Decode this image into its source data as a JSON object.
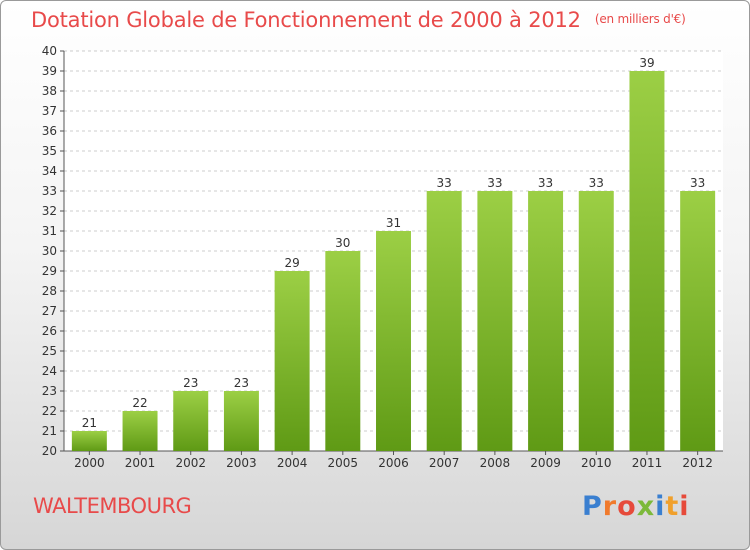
{
  "header": {
    "title": "Dotation Globale de Fonctionnement de 2000 à 2012",
    "unit": "(en milliers d'€)"
  },
  "footer": {
    "commune": "WALTEMBOURG",
    "logo_text": "Proxiti",
    "logo_letters": [
      {
        "ch": "P",
        "color": "#3a7fd0"
      },
      {
        "ch": "r",
        "color": "#f07a2c"
      },
      {
        "ch": "o",
        "color": "#e64a3a"
      },
      {
        "ch": "x",
        "color": "#7cb93a"
      },
      {
        "ch": "i",
        "color": "#3a7fd0"
      },
      {
        "ch": "t",
        "color": "#f0a02c"
      },
      {
        "ch": "i",
        "color": "#e64a3a"
      }
    ]
  },
  "colors": {
    "title": "#e84a4a",
    "bar_light": "#9ccf45",
    "bar_dark": "#5f9a15",
    "grid": "#cccccc"
  },
  "chart_data": {
    "type": "bar",
    "categories": [
      "2000",
      "2001",
      "2002",
      "2003",
      "2004",
      "2005",
      "2006",
      "2007",
      "2008",
      "2009",
      "2010",
      "2011",
      "2012"
    ],
    "values": [
      21,
      22,
      23,
      23,
      29,
      30,
      31,
      33,
      33,
      33,
      33,
      39,
      33
    ],
    "ylim": [
      20,
      40
    ],
    "yticks": [
      20,
      21,
      22,
      23,
      24,
      25,
      26,
      27,
      28,
      29,
      30,
      31,
      32,
      33,
      34,
      35,
      36,
      37,
      38,
      39,
      40
    ],
    "grid": true,
    "data_labels": true
  }
}
